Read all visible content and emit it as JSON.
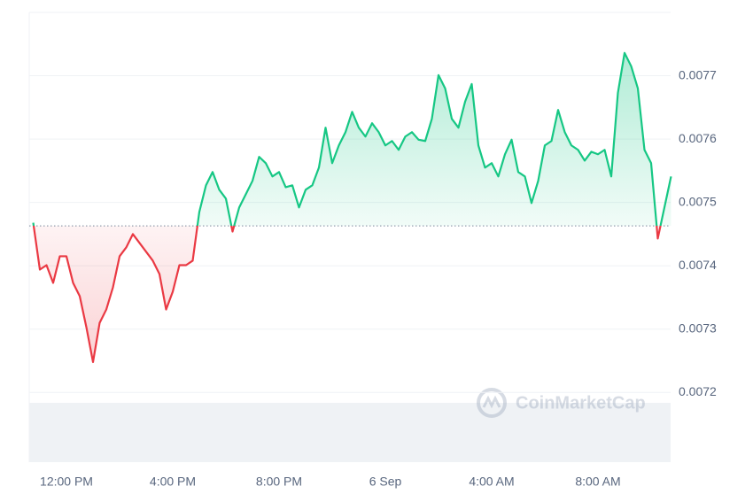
{
  "chart_data": {
    "type": "line",
    "watermark": "CoinMarketCap",
    "categories": [
      null,
      null,
      null,
      null,
      null,
      "12:00 PM",
      null,
      null,
      null,
      null,
      null,
      null,
      null,
      null,
      null,
      null,
      null,
      null,
      null,
      null,
      null,
      "4:00 PM",
      null,
      null,
      null,
      null,
      null,
      null,
      null,
      null,
      null,
      null,
      null,
      null,
      null,
      null,
      null,
      "8:00 PM",
      null,
      null,
      null,
      null,
      null,
      null,
      null,
      null,
      null,
      null,
      null,
      null,
      null,
      null,
      null,
      "6 Sep",
      null,
      null,
      null,
      null,
      null,
      null,
      null,
      null,
      null,
      null,
      null,
      null,
      null,
      null,
      null,
      "4:00 AM",
      null,
      null,
      null,
      null,
      null,
      null,
      null,
      null,
      null,
      null,
      null,
      null,
      null,
      null,
      null,
      "8:00 AM",
      null,
      null,
      null,
      null,
      null,
      null,
      null,
      null,
      null,
      null,
      null
    ],
    "values": [
      0.007468,
      0.007394,
      0.007401,
      0.007373,
      0.007415,
      0.007415,
      0.007373,
      0.007352,
      0.007303,
      0.007248,
      0.00731,
      0.007331,
      0.007366,
      0.007415,
      0.007429,
      0.00745,
      0.007436,
      0.007422,
      0.007408,
      0.007387,
      0.007331,
      0.007359,
      0.007401,
      0.007401,
      0.007408,
      0.007485,
      0.007527,
      0.007548,
      0.00752,
      0.007506,
      0.007454,
      0.007492,
      0.007513,
      0.007534,
      0.007572,
      0.007562,
      0.007541,
      0.007548,
      0.007524,
      0.007527,
      0.007492,
      0.00752,
      0.007527,
      0.007555,
      0.007618,
      0.007562,
      0.00759,
      0.007611,
      0.007643,
      0.007618,
      0.007604,
      0.007625,
      0.007611,
      0.00759,
      0.007597,
      0.007583,
      0.007604,
      0.007611,
      0.007599,
      0.007597,
      0.007632,
      0.007701,
      0.00768,
      0.007632,
      0.007618,
      0.007659,
      0.007687,
      0.00759,
      0.007555,
      0.007562,
      0.007541,
      0.007576,
      0.007599,
      0.007548,
      0.007541,
      0.007499,
      0.007534,
      0.00759,
      0.007597,
      0.007646,
      0.007611,
      0.00759,
      0.007583,
      0.007566,
      0.00758,
      0.007576,
      0.007583,
      0.007541,
      0.007673,
      0.007736,
      0.007715,
      0.00768,
      0.007583,
      0.007562,
      0.007443,
      0.007492,
      0.007541
    ],
    "baseline": 0.007463,
    "up_color": "#16c784",
    "down_color": "#ea3943",
    "ylim": [
      0.00709,
      0.0078
    ],
    "yticks": [
      0.0072,
      0.0073,
      0.0074,
      0.0075,
      0.0076,
      0.0077
    ],
    "grid": true
  }
}
